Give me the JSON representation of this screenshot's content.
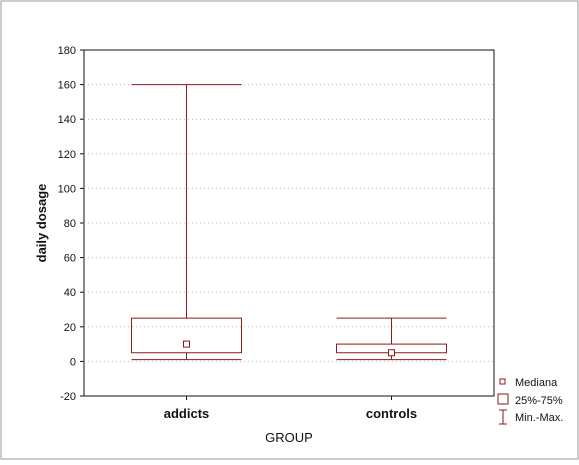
{
  "chart_data": {
    "type": "boxplot",
    "xlabel": "GROUP",
    "ylabel": "daily dosage",
    "ylim": [
      -20,
      180
    ],
    "yticks": [
      -20,
      0,
      20,
      40,
      60,
      80,
      100,
      120,
      140,
      160,
      180
    ],
    "grid": "horizontal dotted",
    "legend_position": "bottom-right",
    "categories": [
      "addicts",
      "controls"
    ],
    "boxes": [
      {
        "category": "addicts",
        "min": 1,
        "q1": 5,
        "median": 10,
        "q3": 25,
        "max": 160
      },
      {
        "category": "controls",
        "min": 1,
        "q1": 5,
        "median": 5,
        "q3": 10,
        "max": 25
      }
    ],
    "legend": [
      {
        "label": "Mediana",
        "symbol": "small-square"
      },
      {
        "label": "25%-75%",
        "symbol": "box"
      },
      {
        "label": "Min.-Max.",
        "symbol": "whisker"
      }
    ],
    "colors": {
      "series": "#8b1a1a",
      "axis": "#111111",
      "grid": "#b8b8b8",
      "frame": "#9a9a9a"
    }
  }
}
